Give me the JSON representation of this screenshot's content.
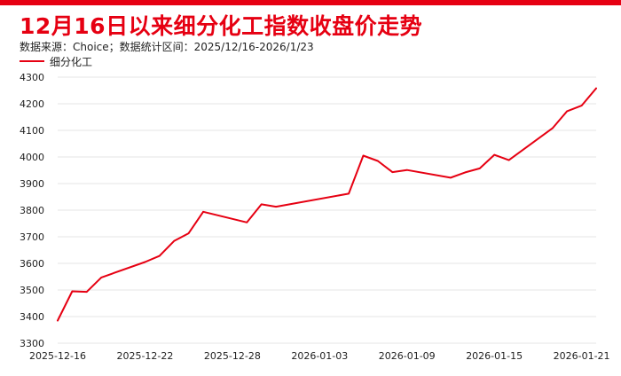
{
  "title": "12月16日以来细分化工指数收盘价走势",
  "subtitle": "数据来源：Choice；数据统计区间：2025/12/16-2026/1/23",
  "legend": {
    "label": "细分化工"
  },
  "colors": {
    "accent": "#e60012",
    "line": "#e60012",
    "grid": "#e6e6e6",
    "text": "#222222"
  },
  "chart_data": {
    "type": "line",
    "title": "12月16日以来细分化工指数收盘价走势",
    "ylim": [
      3300,
      4300
    ],
    "yticks": [
      3300,
      3400,
      3500,
      3600,
      3700,
      3800,
      3900,
      4000,
      4100,
      4200,
      4300
    ],
    "xticks": [
      "2025-12-16",
      "2025-12-22",
      "2025-12-28",
      "2026-01-03",
      "2026-01-09",
      "2026-01-15",
      "2026-01-21"
    ],
    "xrange": [
      "2025-12-16",
      "2026-01-22"
    ],
    "grid": "horizontal",
    "legend_position": "top-left",
    "series": [
      {
        "name": "细分化工",
        "points": [
          [
            "2025-12-16",
            3385
          ],
          [
            "2025-12-17",
            3495
          ],
          [
            "2025-12-18",
            3493
          ],
          [
            "2025-12-19",
            3547
          ],
          [
            "2025-12-22",
            3605
          ],
          [
            "2025-12-23",
            3628
          ],
          [
            "2025-12-24",
            3684
          ],
          [
            "2025-12-25",
            3713
          ],
          [
            "2025-12-26",
            3794
          ],
          [
            "2025-12-29",
            3754
          ],
          [
            "2025-12-30",
            3822
          ],
          [
            "2025-12-31",
            3813
          ],
          [
            "2026-01-05",
            3862
          ],
          [
            "2026-01-06",
            4005
          ],
          [
            "2026-01-07",
            3985
          ],
          [
            "2026-01-08",
            3943
          ],
          [
            "2026-01-09",
            3951
          ],
          [
            "2026-01-12",
            3922
          ],
          [
            "2026-01-13",
            3942
          ],
          [
            "2026-01-14",
            3957
          ],
          [
            "2026-01-15",
            4008
          ],
          [
            "2026-01-16",
            3988
          ],
          [
            "2026-01-19",
            4108
          ],
          [
            "2026-01-20",
            4172
          ],
          [
            "2026-01-21",
            4193
          ],
          [
            "2026-01-22",
            4258
          ]
        ]
      }
    ]
  }
}
